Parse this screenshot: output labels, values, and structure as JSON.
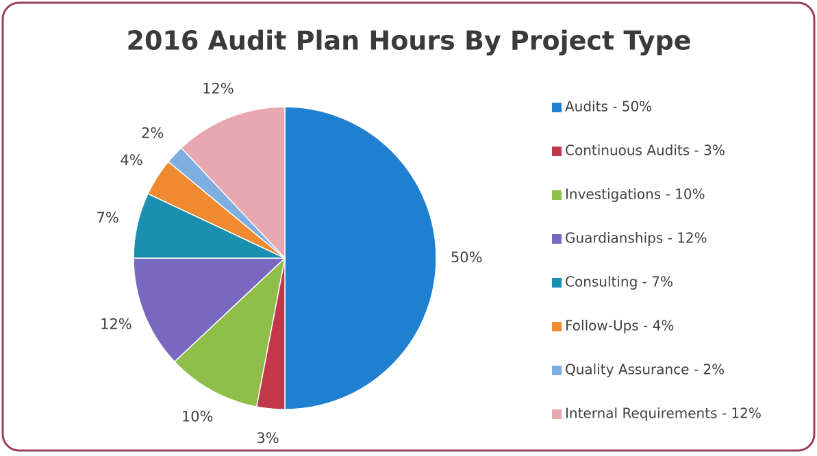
{
  "chart_data": {
    "type": "pie",
    "title": "2016 Audit Plan Hours By Project Type",
    "categories": [
      "Audits - 50%",
      "Continuous Audits - 3%",
      "Investigations - 10%",
      "Guardianships - 12%",
      "Consulting - 7%",
      "Follow-Ups - 4%",
      "Quality Assurance - 2%",
      "Internal Requirements - 12%"
    ],
    "values": [
      50,
      3,
      10,
      12,
      7,
      4,
      2,
      12
    ],
    "value_labels": [
      "50%",
      "3%",
      "10%",
      "12%",
      "7%",
      "4%",
      "2%",
      "12%"
    ],
    "colors": [
      "#1f7fd1",
      "#c0394a",
      "#8fbf4a",
      "#7a68c0",
      "#1a8fb0",
      "#f08a30",
      "#7faee0",
      "#e8a8b0"
    ],
    "legend": "right"
  }
}
